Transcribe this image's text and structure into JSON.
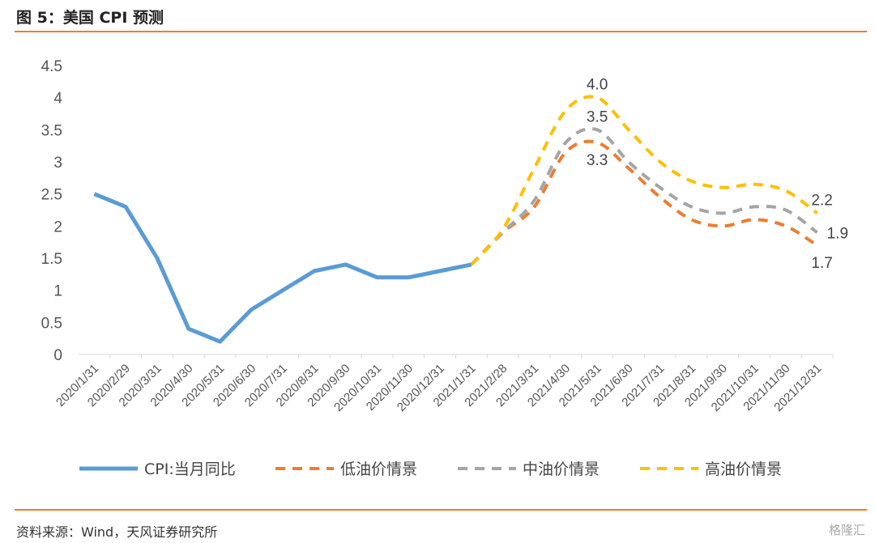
{
  "title": "图 5：美国 CPI 预测",
  "source": "资料来源：Wind，天风证券研究所",
  "watermark": "格隆汇",
  "chart_data": {
    "type": "line",
    "categories": [
      "2020/1/31",
      "2020/2/29",
      "2020/3/31",
      "2020/4/30",
      "2020/5/31",
      "2020/6/30",
      "2020/7/31",
      "2020/8/31",
      "2020/9/30",
      "2020/10/31",
      "2020/11/30",
      "2020/12/31",
      "2021/1/31",
      "2021/2/28",
      "2021/3/31",
      "2021/4/30",
      "2021/5/31",
      "2021/6/30",
      "2021/7/31",
      "2021/8/31",
      "2021/9/30",
      "2021/10/31",
      "2021/11/30",
      "2021/12/31"
    ],
    "ylim": [
      0,
      4.5
    ],
    "yticks": [
      "0",
      "0.5",
      "1",
      "1.5",
      "2",
      "2.5",
      "3",
      "3.5",
      "4",
      "4.5"
    ],
    "legend_position": "bottom",
    "series": [
      {
        "name": "CPI:当月同比",
        "color": "#5b9bd5",
        "dashed": false,
        "values": [
          2.5,
          2.3,
          1.5,
          0.4,
          0.2,
          0.7,
          1.0,
          1.3,
          1.4,
          1.2,
          1.2,
          1.3,
          1.4,
          null,
          null,
          null,
          null,
          null,
          null,
          null,
          null,
          null,
          null,
          null
        ]
      },
      {
        "name": "低油价情景",
        "color": "#ed7d31",
        "dashed": true,
        "values": [
          null,
          null,
          null,
          null,
          null,
          null,
          null,
          null,
          null,
          null,
          null,
          null,
          1.4,
          1.9,
          2.3,
          3.15,
          3.3,
          2.9,
          2.45,
          2.1,
          2.0,
          2.1,
          2.0,
          1.7
        ]
      },
      {
        "name": "中油价情景",
        "color": "#a5a5a5",
        "dashed": true,
        "values": [
          null,
          null,
          null,
          null,
          null,
          null,
          null,
          null,
          null,
          null,
          null,
          null,
          1.4,
          1.9,
          2.4,
          3.3,
          3.5,
          3.0,
          2.6,
          2.3,
          2.2,
          2.3,
          2.25,
          1.9
        ]
      },
      {
        "name": "高油价情景",
        "color": "#ffc000",
        "dashed": true,
        "values": [
          null,
          null,
          null,
          null,
          null,
          null,
          null,
          null,
          null,
          null,
          null,
          null,
          1.4,
          1.95,
          2.9,
          3.8,
          4.0,
          3.5,
          3.0,
          2.7,
          2.6,
          2.65,
          2.55,
          2.2
        ]
      }
    ],
    "annotations": [
      {
        "text": "4.0",
        "series": 3,
        "index": 16,
        "pos": "above"
      },
      {
        "text": "3.5",
        "series": 2,
        "index": 16,
        "pos": "above"
      },
      {
        "text": "3.3",
        "series": 1,
        "index": 16,
        "pos": "below"
      },
      {
        "text": "2.2",
        "series": 3,
        "index": 23,
        "pos": "above"
      },
      {
        "text": "1.9",
        "series": 2,
        "index": 23,
        "pos": "right"
      },
      {
        "text": "1.7",
        "series": 1,
        "index": 23,
        "pos": "below"
      }
    ]
  }
}
